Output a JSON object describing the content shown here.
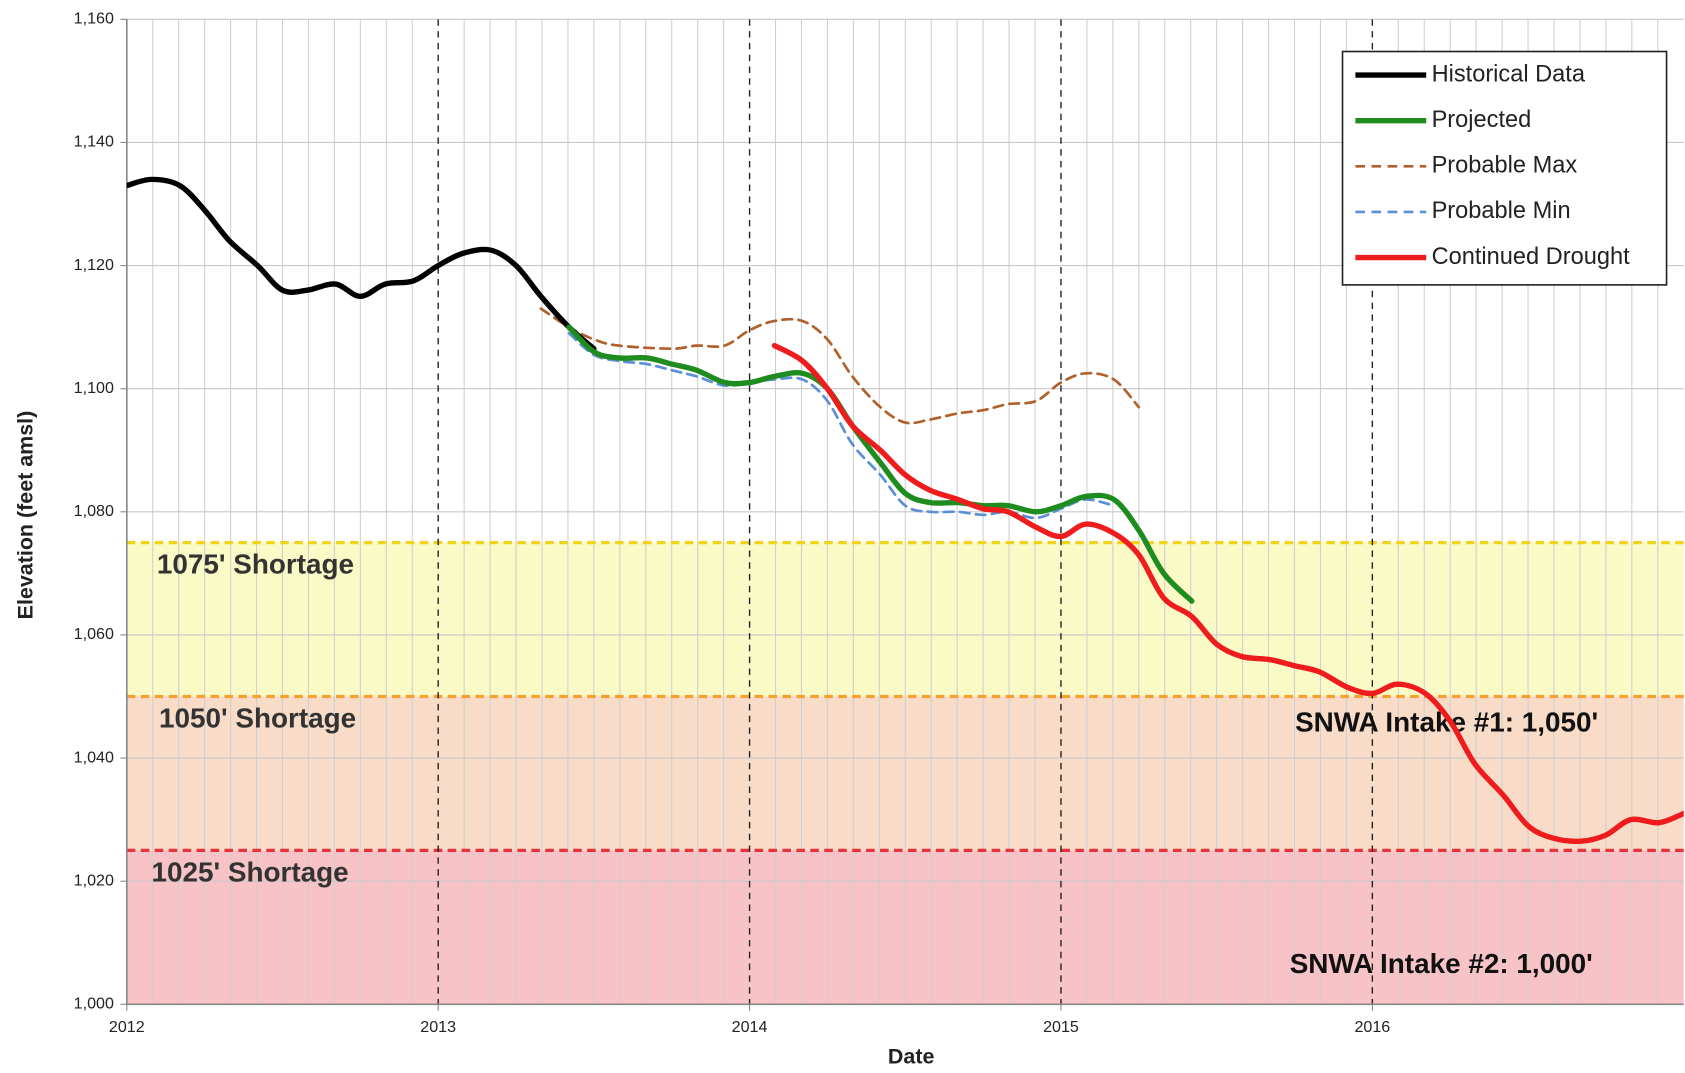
{
  "chart_data": {
    "type": "line",
    "x_label": "Date",
    "y_label": "Elevation (feet amsl)",
    "xlim": [
      2012,
      2017
    ],
    "xticks": [
      2012,
      2013,
      2014,
      2015,
      2016
    ],
    "ylim": [
      1000,
      1160
    ],
    "yticks": [
      {
        "value": 1000,
        "label": "1,000"
      },
      {
        "value": 1020,
        "label": "1,020"
      },
      {
        "value": 1040,
        "label": "1,040"
      },
      {
        "value": 1060,
        "label": "1,060"
      },
      {
        "value": 1080,
        "label": "1,080"
      },
      {
        "value": 1100,
        "label": "1,100"
      },
      {
        "value": 1120,
        "label": "1,120"
      },
      {
        "value": 1140,
        "label": "1,140"
      },
      {
        "value": 1160,
        "label": "1,160"
      }
    ],
    "grid": true,
    "legend": "upper right",
    "zones": [
      {
        "label": "1075' Shortage",
        "from": 1050,
        "to": 1075,
        "fill": "#fafac6",
        "line": "#f2d21a"
      },
      {
        "label": "1050' Shortage",
        "from": 1025,
        "to": 1050,
        "fill": "#f8dcc8",
        "line": "#f5a033"
      },
      {
        "label": "1025' Shortage",
        "from": 1000,
        "to": 1025,
        "fill": "#f7c3c6",
        "line": "#e8323c"
      }
    ],
    "annotations": [
      "SNWA Intake #1: 1,050'",
      "SNWA Intake #2: 1,000'"
    ],
    "series": [
      {
        "name": "Historical Data",
        "color": "#000000",
        "style": "solid",
        "x": [
          2012.0,
          2012.08,
          2012.17,
          2012.25,
          2012.33,
          2012.42,
          2012.5,
          2012.58,
          2012.67,
          2012.75,
          2012.83,
          2012.92,
          2013.0,
          2013.08,
          2013.17,
          2013.25,
          2013.33,
          2013.42,
          2013.5
        ],
        "values": [
          1133,
          1134,
          1133,
          1129,
          1124,
          1120,
          1116,
          1116,
          1117,
          1115,
          1117,
          1117.5,
          1120,
          1122,
          1122.5,
          1120,
          1115,
          1110,
          1106.5
        ]
      },
      {
        "name": "Projected",
        "color": "#1e8c1e",
        "style": "solid",
        "x": [
          2013.42,
          2013.5,
          2013.58,
          2013.67,
          2013.75,
          2013.83,
          2013.92,
          2014.0,
          2014.08,
          2014.17,
          2014.25,
          2014.33,
          2014.42,
          2014.5,
          2014.58,
          2014.67,
          2014.75,
          2014.83,
          2014.92,
          2015.0,
          2015.08,
          2015.17,
          2015.25,
          2015.33,
          2015.42
        ],
        "values": [
          1110,
          1106,
          1105,
          1105,
          1104,
          1103,
          1101,
          1101,
          1102,
          1102.5,
          1100,
          1094,
          1088,
          1083,
          1081.5,
          1081.5,
          1081,
          1081,
          1080,
          1081,
          1082.5,
          1082,
          1077,
          1070,
          1065.5
        ]
      },
      {
        "name": "Probable Max",
        "color": "#b0602a",
        "style": "dashed",
        "x": [
          2013.33,
          2013.42,
          2013.5,
          2013.58,
          2013.75,
          2013.83,
          2013.92,
          2014.0,
          2014.08,
          2014.17,
          2014.25,
          2014.33,
          2014.42,
          2014.5,
          2014.58,
          2014.67,
          2014.75,
          2014.83,
          2014.92,
          2015.0,
          2015.08,
          2015.17,
          2015.25
        ],
        "values": [
          1113,
          1110,
          1108,
          1107,
          1106.5,
          1107,
          1107,
          1109.5,
          1111,
          1111,
          1108,
          1102,
          1097,
          1094.5,
          1095,
          1096,
          1096.5,
          1097.5,
          1098,
          1101,
          1102.5,
          1101.5,
          1097
        ]
      },
      {
        "name": "Probable Min",
        "color": "#5b8fd6",
        "style": "dashed",
        "x": [
          2013.42,
          2013.5,
          2013.58,
          2013.67,
          2013.75,
          2013.83,
          2013.92,
          2014.0,
          2014.08,
          2014.17,
          2014.25,
          2014.33,
          2014.42,
          2014.5,
          2014.58,
          2014.67,
          2014.75,
          2014.83,
          2014.92,
          2015.0,
          2015.08,
          2015.17
        ],
        "values": [
          1109,
          1105.5,
          1104.5,
          1104,
          1103,
          1102,
          1100.5,
          1101,
          1101.5,
          1101.5,
          1098,
          1091,
          1086,
          1081,
          1080,
          1080,
          1079.5,
          1080,
          1079,
          1080.5,
          1082,
          1081
        ]
      },
      {
        "name": "Continued Drought",
        "color": "#ee1c1c",
        "style": "solid",
        "x": [
          2014.08,
          2014.17,
          2014.25,
          2014.33,
          2014.42,
          2014.5,
          2014.58,
          2014.67,
          2014.75,
          2014.83,
          2014.92,
          2015.0,
          2015.08,
          2015.17,
          2015.25,
          2015.33,
          2015.42,
          2015.5,
          2015.58,
          2015.67,
          2015.75,
          2015.83,
          2015.92,
          2016.0,
          2016.08,
          2016.17,
          2016.25,
          2016.33,
          2016.42,
          2016.5,
          2016.58,
          2016.67,
          2016.75,
          2016.83,
          2016.92,
          2017.0
        ],
        "values": [
          1107,
          1104.5,
          1100,
          1094,
          1090,
          1086,
          1083.5,
          1082,
          1080.5,
          1080,
          1077.5,
          1076,
          1078,
          1076.5,
          1073,
          1066,
          1063,
          1058.5,
          1056.5,
          1056,
          1055,
          1054,
          1051.5,
          1050.5,
          1052,
          1050.5,
          1046,
          1039,
          1034,
          1029,
          1027,
          1026.5,
          1027.5,
          1030,
          1029.5,
          1031
        ]
      }
    ]
  }
}
